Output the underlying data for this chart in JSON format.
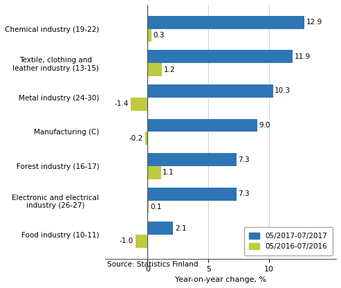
{
  "categories": [
    "Chemical industry (19-22)",
    "Textile, clothing and\nleather industry (13-15)",
    "Metal industry (24-30)",
    "Manufacturing (C)",
    "Forest industry (16-17)",
    "Electronic and electrical\nindustry (26-27)",
    "Food industry (10-11)"
  ],
  "values_2017": [
    12.9,
    11.9,
    10.3,
    9.0,
    7.3,
    7.3,
    2.1
  ],
  "values_2016": [
    0.3,
    1.2,
    -1.4,
    -0.2,
    1.1,
    0.1,
    -1.0
  ],
  "color_2017": "#2e75b6",
  "color_2016": "#bfca3e",
  "bar_height": 0.38,
  "xlim": [
    -3.5,
    15.5
  ],
  "xlabel": "Year-on-year change, %",
  "legend_2017": "05/2017-07/2017",
  "legend_2016": "05/2016-07/2016",
  "source": "Source: Statistics Finland",
  "xticks": [
    0,
    5,
    10
  ],
  "figsize": [
    4.93,
    4.16
  ],
  "dpi": 100
}
